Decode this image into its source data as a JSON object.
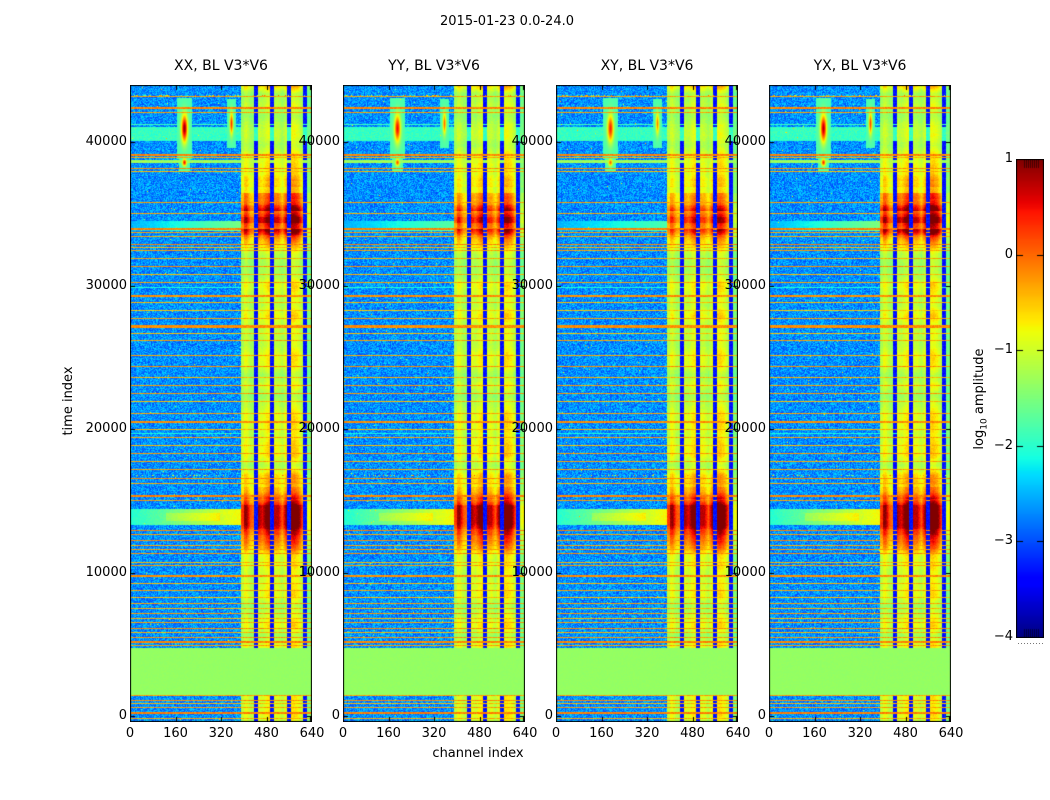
{
  "chart_data": {
    "type": "heatmap",
    "title": "2015-01-23 0.0-24.0",
    "xlabel": "channel index",
    "ylabel": "time index",
    "colormap": "jet",
    "x_ticks": [
      0,
      160,
      320,
      480,
      640
    ],
    "x_range": [
      0,
      640
    ],
    "y_ticks": [
      0,
      10000,
      20000,
      30000,
      40000
    ],
    "y_range": [
      -420,
      43980
    ],
    "panels": [
      {
        "title": "XX, BL V3*V6",
        "storm_upper_scale": 1.0,
        "storm_lower_scale": 1.0,
        "blob_scale": 1.0,
        "seed": 11
      },
      {
        "title": "YY, BL V3*V6",
        "storm_upper_scale": 0.82,
        "storm_lower_scale": 0.95,
        "blob_scale": 0.85,
        "seed": 29
      },
      {
        "title": "XY, BL V3*V6",
        "storm_upper_scale": 0.75,
        "storm_lower_scale": 1.0,
        "blob_scale": 0.8,
        "seed": 47
      },
      {
        "title": "YX, BL V3*V6",
        "storm_upper_scale": 1.05,
        "storm_lower_scale": 1.05,
        "blob_scale": 0.95,
        "seed": 71
      }
    ],
    "colorbar": {
      "label_prefix": "log",
      "label_sub": "10",
      "label_suffix": " amplitude",
      "ticks": [
        1,
        0,
        -1,
        -2,
        -3,
        -4
      ],
      "range": [
        -4,
        1
      ]
    },
    "features": {
      "background_level": -3.05,
      "background_noise": 0.75,
      "band": {
        "channel_start": 390,
        "gap_channels": [
          [
            436,
            447
          ],
          [
            492,
            503
          ],
          [
            552,
            563
          ],
          [
            608,
            619
          ]
        ],
        "hot_channels": [
          [
            450,
            489
          ],
          [
            506,
            549
          ],
          [
            566,
            605
          ]
        ]
      },
      "green_block": {
        "time_start": 1530,
        "time_end": 4740,
        "value": -1.38
      },
      "cyan_band": {
        "time_center": 40600,
        "half_width": 450,
        "value": -2.1
      },
      "storms_upper": [
        {
          "center": 34300,
          "sigma": 750,
          "amp": 1.0
        },
        {
          "center": 36300,
          "sigma": 1100,
          "amp": 0.5
        }
      ],
      "storms_lower": [
        {
          "center": 14200,
          "sigma": 850,
          "amp": 1.15
        },
        {
          "center": 12200,
          "sigma": 800,
          "amp": 0.5
        },
        {
          "center": 16300,
          "sigma": 500,
          "amp": 0.4
        }
      ],
      "transit_streak": {
        "time_center": 13900,
        "half_width": 500
      },
      "upper_streak": {
        "time_center": 34200,
        "half_width": 280
      },
      "speckle_rows": [
        43300,
        16800
      ],
      "blobs": [
        {
          "channel": 190,
          "time": 41000,
          "sx": 2.2,
          "sy": 10,
          "peak": 2.72
        },
        {
          "channel": 355,
          "time": 41300,
          "sx": 1.2,
          "sy": 8,
          "peak": 2.1
        },
        {
          "channel": 190,
          "time": 38600,
          "sx": 1.5,
          "sy": 2.5,
          "peak": 2.3
        }
      ],
      "stripes": [
        [
          43200,
          -0.3,
          1
        ],
        [
          42440,
          -0.15,
          2
        ],
        [
          42090,
          -0.3,
          1
        ],
        [
          41250,
          -1.9,
          1
        ],
        [
          39160,
          -0.15,
          2
        ],
        [
          38950,
          -0.35,
          1
        ],
        [
          38750,
          -1.3,
          3
        ],
        [
          38190,
          -0.2,
          1
        ],
        [
          37980,
          -0.4,
          1
        ],
        [
          35820,
          -0.3,
          1
        ],
        [
          35050,
          -0.35,
          1
        ],
        [
          34010,
          -0.15,
          2
        ],
        [
          33730,
          -0.3,
          1
        ],
        [
          33450,
          -0.35,
          1
        ],
        [
          32890,
          -0.15,
          1
        ],
        [
          32680,
          -0.4,
          1
        ],
        [
          32470,
          -0.3,
          1
        ],
        [
          31920,
          -0.35,
          1
        ],
        [
          31360,
          -0.2,
          1
        ],
        [
          30800,
          -0.4,
          1
        ],
        [
          30240,
          -0.3,
          1
        ],
        [
          29900,
          -2.05,
          1
        ],
        [
          29340,
          -0.2,
          2
        ],
        [
          28850,
          -0.4,
          1
        ],
        [
          28290,
          -0.5,
          1
        ],
        [
          27730,
          -0.3,
          1
        ],
        [
          27240,
          -0.2,
          3
        ],
        [
          26690,
          -0.45,
          1
        ],
        [
          26200,
          -0.3,
          1
        ],
        [
          25150,
          -0.35,
          1
        ],
        [
          24390,
          -0.2,
          1
        ],
        [
          23620,
          -0.4,
          1
        ],
        [
          23060,
          -0.3,
          1
        ],
        [
          22500,
          -0.25,
          1
        ],
        [
          21940,
          -0.45,
          1
        ],
        [
          21110,
          -0.3,
          1
        ],
        [
          20550,
          -0.2,
          2
        ],
        [
          20000,
          -0.4,
          1
        ],
        [
          19700,
          -2.1,
          1
        ],
        [
          19440,
          -0.3,
          1
        ],
        [
          18880,
          -0.45,
          1
        ],
        [
          18320,
          -0.25,
          1
        ],
        [
          17760,
          -0.35,
          1
        ],
        [
          17210,
          -0.3,
          1
        ],
        [
          16580,
          -0.2,
          1
        ],
        [
          16230,
          -0.35,
          1
        ],
        [
          15400,
          -0.15,
          2
        ],
        [
          15050,
          -0.3,
          1
        ],
        [
          12960,
          -0.15,
          1
        ],
        [
          12680,
          -0.3,
          1
        ],
        [
          12260,
          -0.2,
          1
        ],
        [
          11920,
          -0.35,
          1
        ],
        [
          11640,
          -0.3,
          1
        ],
        [
          11360,
          -0.2,
          1
        ],
        [
          10730,
          -0.4,
          1
        ],
        [
          10520,
          -0.3,
          1
        ],
        [
          9820,
          -0.2,
          2
        ],
        [
          9270,
          -0.4,
          1
        ],
        [
          8780,
          -0.3,
          1
        ],
        [
          8290,
          -0.45,
          1
        ],
        [
          7870,
          -0.3,
          1
        ],
        [
          7530,
          -0.4,
          1
        ],
        [
          7180,
          -0.25,
          1
        ],
        [
          6830,
          -0.4,
          1
        ],
        [
          6550,
          -0.3,
          1
        ],
        [
          6130,
          -0.2,
          1
        ],
        [
          5850,
          -0.4,
          1
        ],
        [
          5500,
          -0.25,
          1
        ],
        [
          5230,
          -0.15,
          2
        ],
        [
          4950,
          -0.3,
          1
        ],
        [
          1460,
          -0.3,
          1
        ],
        [
          1110,
          -0.2,
          1
        ],
        [
          900,
          -0.4,
          1
        ],
        [
          630,
          -0.3,
          1
        ],
        [
          280,
          -0.12,
          2
        ],
        [
          -140,
          -0.35,
          1
        ]
      ]
    }
  }
}
